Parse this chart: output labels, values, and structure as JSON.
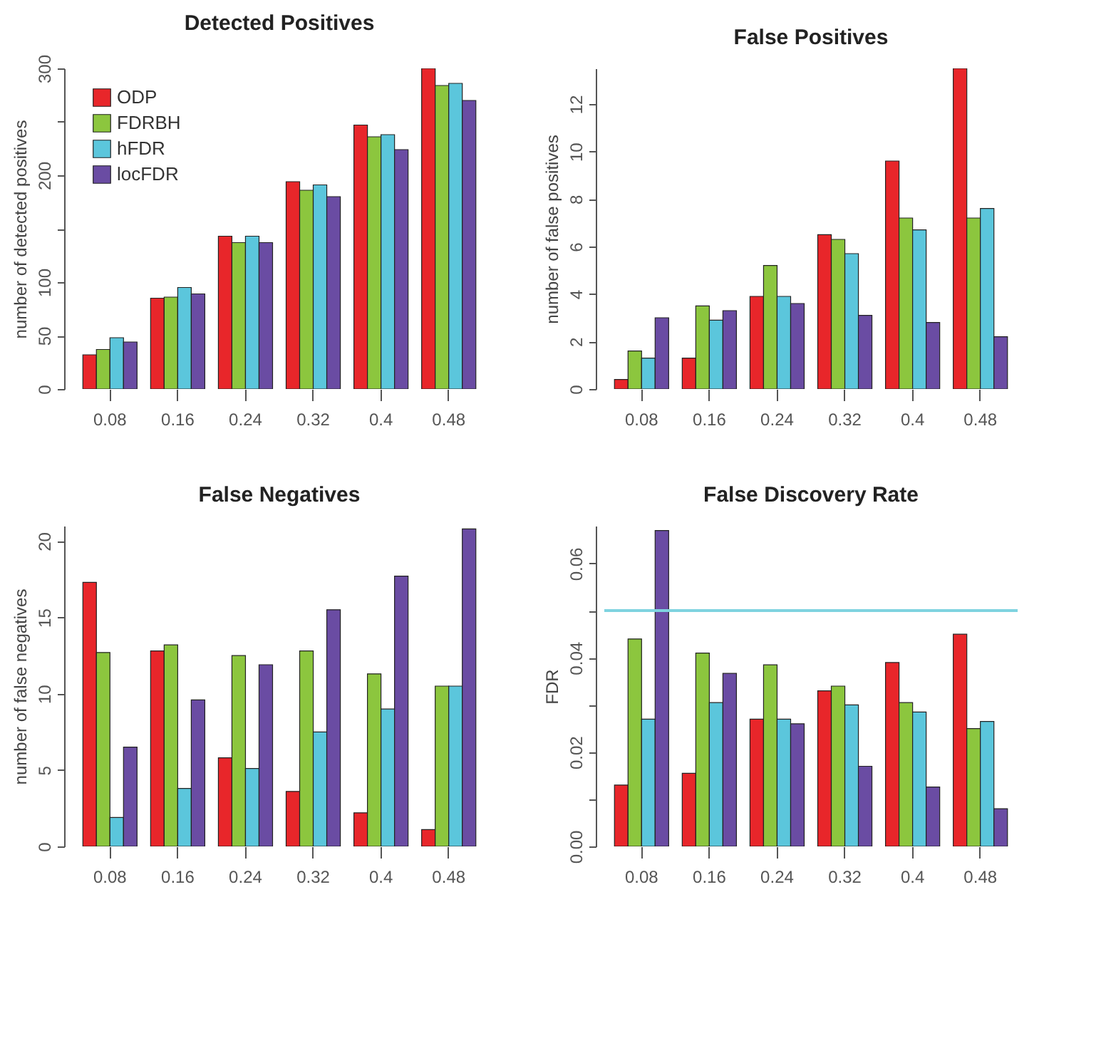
{
  "chart_data": [
    {
      "type": "bar",
      "title": "Detected Positives",
      "ylabel": "number of detected positives",
      "categories": [
        "0.08",
        "0.16",
        "0.24",
        "0.32",
        "0.4",
        "0.48"
      ],
      "ylim": [
        0,
        300
      ],
      "yticks": [
        0,
        50,
        100,
        {
          "value": 150,
          "label": null
        },
        200,
        {
          "value": 250,
          "label": null
        },
        300
      ],
      "grid": false,
      "legend": "top left",
      "series": [
        {
          "name": "ODP",
          "color": "#e8262a",
          "values": [
            32,
            85,
            143,
            194,
            247,
            300
          ]
        },
        {
          "name": "FDRBH",
          "color": "#8cc63e",
          "values": [
            37,
            86,
            137,
            186,
            236,
            284
          ]
        },
        {
          "name": "hFDR",
          "color": "#5bc6dc",
          "values": [
            48,
            95,
            143,
            191,
            238,
            286
          ]
        },
        {
          "name": "locFDR",
          "color": "#6a4ca3",
          "values": [
            44,
            89,
            137,
            180,
            224,
            270
          ]
        }
      ]
    },
    {
      "type": "bar",
      "title": "False Positives",
      "ylabel": "number of false positives",
      "categories": [
        "0.08",
        "0.16",
        "0.24",
        "0.32",
        "0.4",
        "0.48"
      ],
      "ylim": [
        0,
        13.5
      ],
      "yticks": [
        0,
        2,
        4,
        6,
        8,
        10,
        12
      ],
      "grid": false,
      "legend": false,
      "series": [
        {
          "color": "#e8262a",
          "values": [
            0.4,
            1.3,
            3.9,
            6.5,
            9.6,
            13.5
          ]
        },
        {
          "color": "#8cc63e",
          "values": [
            1.6,
            3.5,
            5.2,
            6.3,
            7.2,
            7.2
          ]
        },
        {
          "color": "#5bc6dc",
          "values": [
            1.3,
            2.9,
            3.9,
            5.7,
            6.7,
            7.6
          ]
        },
        {
          "color": "#6a4ca3",
          "values": [
            3.0,
            3.3,
            3.6,
            3.1,
            2.8,
            2.2
          ]
        }
      ]
    },
    {
      "type": "bar",
      "title": "False Negatives",
      "ylabel": "number of false negatives",
      "categories": [
        "0.08",
        "0.16",
        "0.24",
        "0.32",
        "0.4",
        "0.48"
      ],
      "ylim": [
        0,
        21
      ],
      "yticks": [
        0,
        5,
        10,
        15,
        20
      ],
      "grid": false,
      "legend": false,
      "series": [
        {
          "color": "#e8262a",
          "values": [
            17.3,
            12.8,
            5.8,
            3.6,
            2.2,
            1.1
          ]
        },
        {
          "color": "#8cc63e",
          "values": [
            12.7,
            13.2,
            12.5,
            12.8,
            11.3,
            10.5
          ]
        },
        {
          "color": "#5bc6dc",
          "values": [
            1.9,
            3.8,
            5.1,
            7.5,
            9.0,
            10.5
          ]
        },
        {
          "color": "#6a4ca3",
          "values": [
            6.5,
            9.6,
            11.9,
            15.5,
            17.7,
            20.8
          ]
        }
      ]
    },
    {
      "type": "bar",
      "title": "False Discovery Rate",
      "ylabel": "FDR",
      "categories": [
        "0.08",
        "0.16",
        "0.24",
        "0.32",
        "0.4",
        "0.48"
      ],
      "ylim": [
        0,
        0.068
      ],
      "yticks": [
        {
          "value": 0,
          "label": "0.00"
        },
        {
          "value": 0.01,
          "label": null
        },
        0.02,
        {
          "value": 0.03,
          "label": null
        },
        0.04,
        {
          "value": 0.05,
          "label": null
        },
        0.06
      ],
      "grid": false,
      "legend": false,
      "ref_lines": [
        {
          "axis": "y",
          "value": 0.05,
          "color": "#7fd3e0"
        }
      ],
      "series": [
        {
          "color": "#e8262a",
          "values": [
            0.013,
            0.0155,
            0.027,
            0.033,
            0.039,
            0.045
          ]
        },
        {
          "color": "#8cc63e",
          "values": [
            0.044,
            0.041,
            0.0385,
            0.034,
            0.0305,
            0.025
          ]
        },
        {
          "color": "#5bc6dc",
          "values": [
            0.027,
            0.0305,
            0.027,
            0.03,
            0.0285,
            0.0265
          ]
        },
        {
          "color": "#6a4ca3",
          "values": [
            0.067,
            0.0367,
            0.026,
            0.017,
            0.0126,
            0.008
          ]
        }
      ]
    }
  ]
}
